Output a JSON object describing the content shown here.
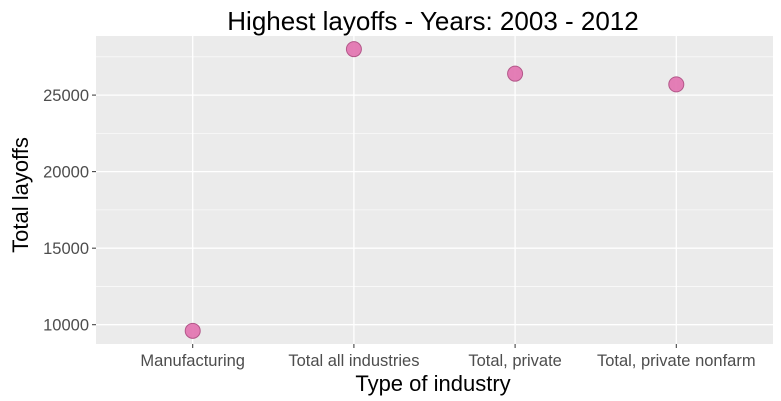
{
  "chart_data": {
    "type": "scatter",
    "title": "Highest layoffs - Years: 2003 - 2012",
    "xlabel": "Type of industry",
    "ylabel": "Total layoffs",
    "categories": [
      "Manufacturing",
      "Total all industries",
      "Total, private",
      "Total, private nonfarm"
    ],
    "values": [
      9600,
      28000,
      26400,
      25700
    ],
    "ylim": [
      8740,
      28860
    ],
    "yticks": [
      10000,
      15000,
      20000,
      25000
    ],
    "ytick_labels": [
      "10000",
      "15000",
      "20000",
      "25000"
    ],
    "grid": true,
    "legend": "none",
    "colors": {
      "panel_background": "#ebebeb",
      "grid_major": "#ffffff",
      "point_fill": "#e377b2",
      "point_stroke": "#b35789",
      "tick_label": "#4d4d4d",
      "tick_mark": "#333333"
    }
  }
}
